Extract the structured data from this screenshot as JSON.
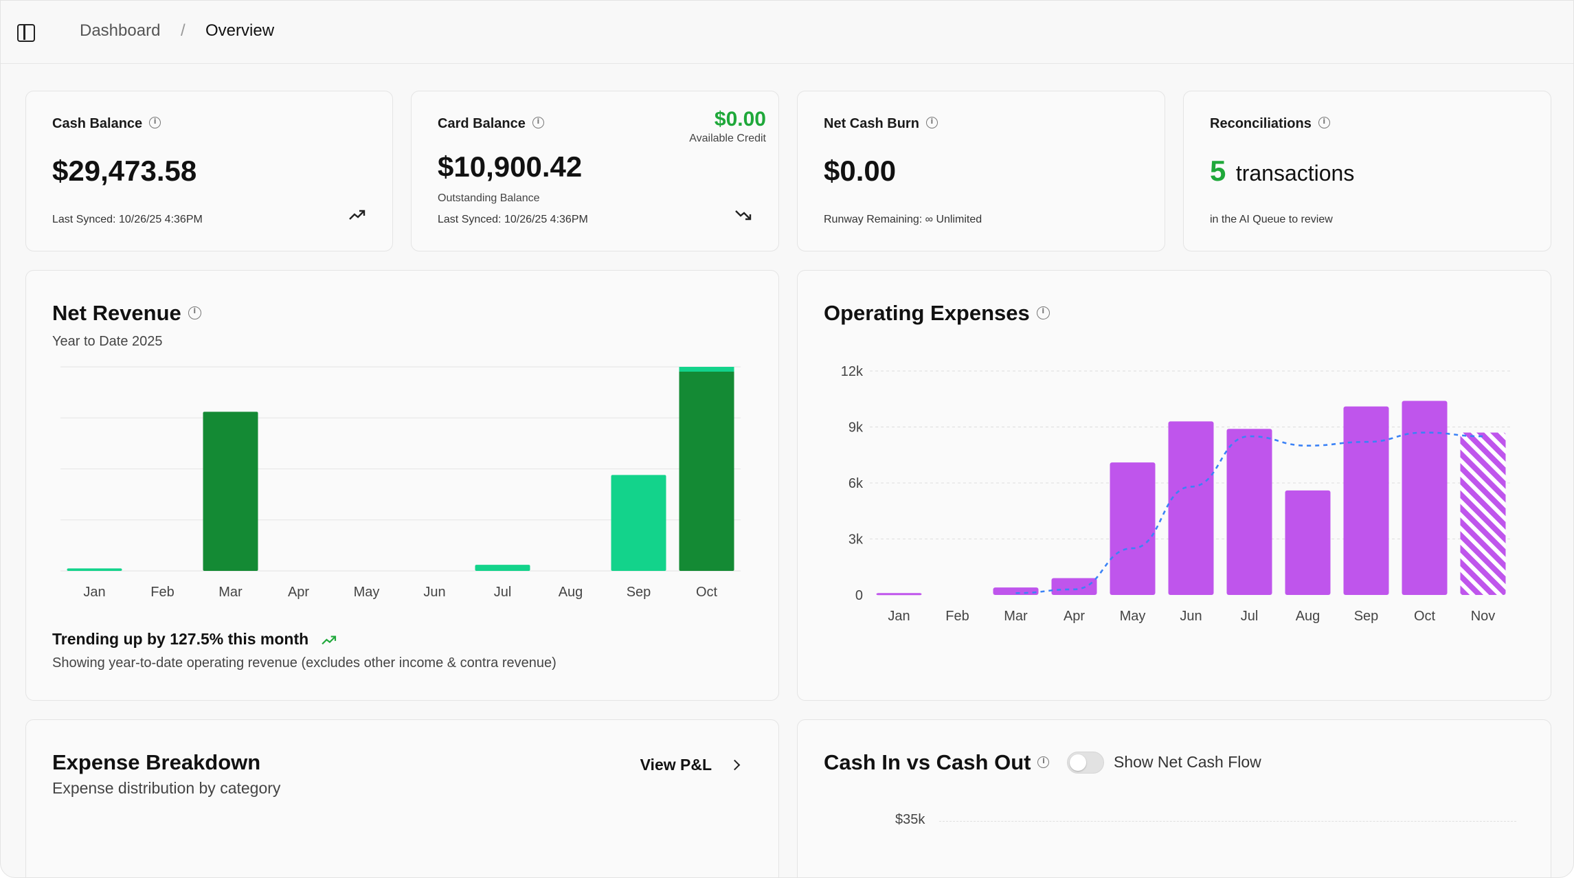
{
  "breadcrumb": {
    "parent": "Dashboard",
    "separator": "/",
    "current": "Overview"
  },
  "kpis": {
    "cash_balance": {
      "title": "Cash Balance",
      "value": "$29,473.58",
      "footer": "Last Synced: 10/26/25 4:36PM",
      "trend": "up"
    },
    "card_balance": {
      "title": "Card Balance",
      "value": "$10,900.42",
      "value_caption": "Outstanding Balance",
      "credit_value": "$0.00",
      "credit_label": "Available Credit",
      "footer": "Last Synced: 10/26/25 4:36PM",
      "trend": "down"
    },
    "net_cash_burn": {
      "title": "Net Cash Burn",
      "value": "$0.00",
      "footer": "Runway Remaining: ∞ Unlimited"
    },
    "reconciliations": {
      "title": "Reconciliations",
      "count": "5",
      "count_label": "transactions",
      "footer": "in the AI Queue to review"
    }
  },
  "net_revenue": {
    "title": "Net Revenue",
    "subtitle": "Year to Date 2025",
    "trend_text": "Trending up by 127.5% this month",
    "note": "Showing year-to-date operating revenue (excludes other income & contra revenue)"
  },
  "operating_expenses": {
    "title": "Operating Expenses"
  },
  "expense_breakdown": {
    "title": "Expense Breakdown",
    "subtitle": "Expense distribution by category",
    "link_label": "View P&L"
  },
  "cash_flow": {
    "title": "Cash In vs Cash Out",
    "toggle_label": "Show Net Cash Flow",
    "toggle_on": false,
    "first_tick": "$35k"
  },
  "colors": {
    "positive": "#1fa83a",
    "revenue_dark": "#148a34",
    "revenue_light": "#13d38b",
    "expense_bar": "#bf55ec",
    "trend_line": "#3b82f6"
  },
  "chart_data": [
    {
      "type": "bar",
      "title": "Net Revenue",
      "categories": [
        "Jan",
        "Feb",
        "Mar",
        "Apr",
        "May",
        "Jun",
        "Jul",
        "Aug",
        "Sep",
        "Oct"
      ],
      "values": [
        1.2,
        0,
        78,
        0,
        0,
        0,
        3,
        0,
        47,
        100
      ],
      "series_colors": [
        "light",
        "light",
        "dark",
        "light",
        "light",
        "light",
        "light",
        "light",
        "light",
        "dark"
      ],
      "ylim": [
        0,
        100
      ],
      "grid": true
    },
    {
      "type": "bar",
      "title": "Operating Expenses",
      "categories": [
        "Jan",
        "Feb",
        "Mar",
        "Apr",
        "May",
        "Jun",
        "Jul",
        "Aug",
        "Sep",
        "Oct",
        "Nov"
      ],
      "values": [
        100,
        0,
        400,
        900,
        7100,
        9300,
        8900,
        5600,
        10100,
        10400,
        8700
      ],
      "projected": [
        false,
        false,
        false,
        false,
        false,
        false,
        false,
        false,
        false,
        false,
        true
      ],
      "trend_line": [
        null,
        null,
        100,
        300,
        2500,
        5800,
        8500,
        8000,
        8200,
        8700,
        8500
      ],
      "y_ticks": [
        "0",
        "3k",
        "6k",
        "9k",
        "12k"
      ],
      "ylim": [
        0,
        12000
      ],
      "grid": true
    }
  ]
}
